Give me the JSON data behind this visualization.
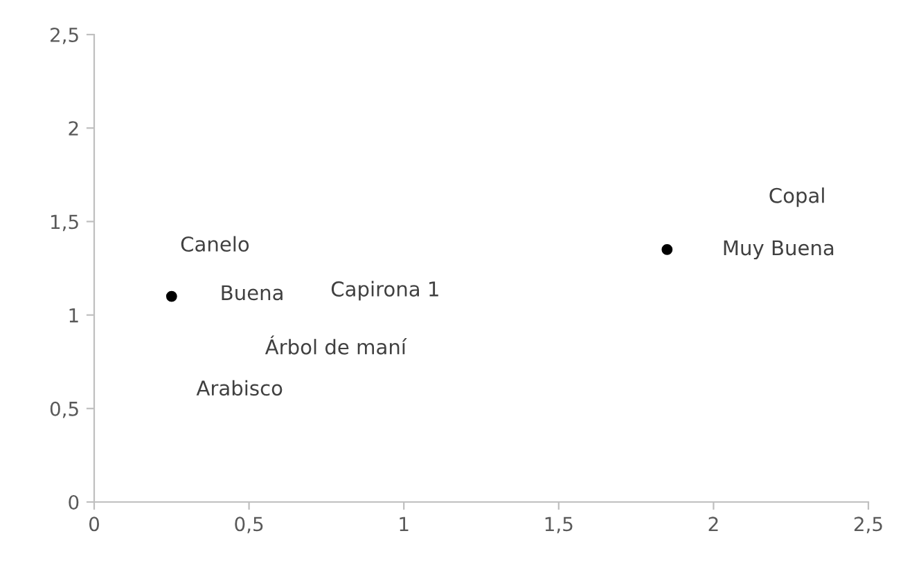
{
  "chart_data": {
    "type": "scatter",
    "x": [
      0.25,
      1.85
    ],
    "series": [
      {
        "color": "#000000",
        "values": [
          1.1,
          1.35
        ]
      }
    ],
    "marker": "circle",
    "grid": false,
    "legend": false,
    "xlim": [
      0,
      2.5
    ],
    "ylim": [
      0,
      2.5
    ],
    "xticks": [
      0,
      {
        "value": 0.5,
        "label": "0,5"
      },
      1,
      {
        "value": 1.5,
        "label": "1,5"
      },
      2,
      {
        "value": 2.5,
        "label": "2,5"
      }
    ],
    "yticks": [
      0,
      {
        "value": 0.5,
        "label": "0,5"
      },
      1,
      {
        "value": 1.5,
        "label": "1,5"
      },
      2,
      {
        "value": 2.5,
        "label": "2,5"
      }
    ],
    "annotations": [
      "Canelo",
      "Buena",
      "Capirona 1",
      "Árbol de maní",
      "Arabisco",
      "Copal",
      "Muy Buena"
    ]
  }
}
